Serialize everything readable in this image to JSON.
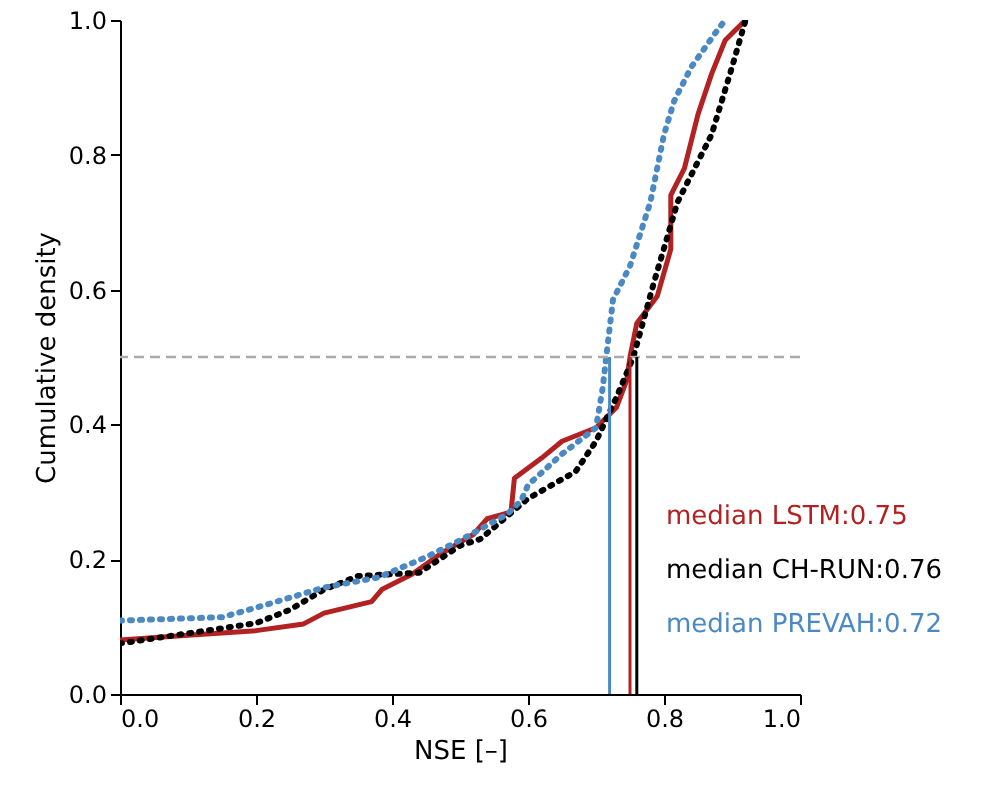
{
  "chart_data": {
    "type": "line",
    "xlabel": "NSE [–]",
    "ylabel": "Cumulative density",
    "xlim": [
      0,
      1
    ],
    "ylim": [
      0,
      1
    ],
    "xticks": [
      {
        "value": 0,
        "label": "0.0"
      },
      0.2,
      0.4,
      0.6,
      0.8,
      {
        "value": 1,
        "label": "1.0"
      }
    ],
    "yticks": [
      {
        "value": 0,
        "label": "0.0"
      },
      0.2,
      0.4,
      0.6,
      0.8,
      {
        "value": 1,
        "label": "1.0"
      }
    ],
    "grid": false,
    "marker": "none",
    "series": [
      {
        "color": "#b22222",
        "line_style": "solid",
        "x": [
          0,
          0.1,
          0.2,
          0.27,
          0.3,
          0.37,
          0.385,
          0.43,
          0.47,
          0.52,
          0.54,
          0.575,
          0.58,
          0.62,
          0.65,
          0.7,
          0.73,
          0.745,
          0.75,
          0.76,
          0.79,
          0.81,
          0.81,
          0.83,
          0.85,
          0.87,
          0.89,
          0.92
        ],
        "values": [
          0.08,
          0.087,
          0.094,
          0.104,
          0.12,
          0.137,
          0.155,
          0.178,
          0.207,
          0.237,
          0.26,
          0.27,
          0.32,
          0.35,
          0.375,
          0.395,
          0.425,
          0.465,
          0.5,
          0.55,
          0.59,
          0.66,
          0.74,
          0.78,
          0.86,
          0.92,
          0.97,
          1.0
        ]
      },
      {
        "color": "#000000",
        "line_style": "dotted",
        "x": [
          0,
          0.1,
          0.2,
          0.25,
          0.3,
          0.35,
          0.44,
          0.5,
          0.53,
          0.6,
          0.67,
          0.7,
          0.73,
          0.755,
          0.785,
          0.82,
          0.87,
          0.9,
          0.92
        ],
        "values": [
          0.075,
          0.09,
          0.105,
          0.125,
          0.155,
          0.175,
          0.18,
          0.22,
          0.23,
          0.29,
          0.33,
          0.375,
          0.44,
          0.5,
          0.61,
          0.73,
          0.83,
          0.93,
          1.0
        ]
      },
      {
        "color": "#4a89c4",
        "line_style": "dotted",
        "x": [
          0,
          0.15,
          0.2,
          0.3,
          0.38,
          0.45,
          0.5,
          0.57,
          0.59,
          0.6,
          0.65,
          0.7,
          0.71,
          0.715,
          0.725,
          0.75,
          0.78,
          0.8,
          0.815,
          0.84,
          0.875,
          0.89
        ],
        "values": [
          0.109,
          0.114,
          0.128,
          0.158,
          0.173,
          0.203,
          0.228,
          0.267,
          0.287,
          0.31,
          0.356,
          0.395,
          0.455,
          0.5,
          0.585,
          0.635,
          0.73,
          0.83,
          0.88,
          0.93,
          0.98,
          1.0
        ]
      }
    ],
    "ref_lines": [
      {
        "axis": "y",
        "value": 0.5,
        "color": "#aaaaaa",
        "line_style": "dashed"
      },
      {
        "axis": "x",
        "value": 0.75,
        "label": "median LSTM:0.75",
        "color": "#b22222"
      },
      {
        "axis": "x",
        "value": 0.76,
        "label": "median CH-RUN:0.76",
        "color": "#000000"
      },
      {
        "axis": "x",
        "value": 0.72,
        "label": "median PREVAH:0.72",
        "color": "#4a89c4"
      }
    ]
  }
}
